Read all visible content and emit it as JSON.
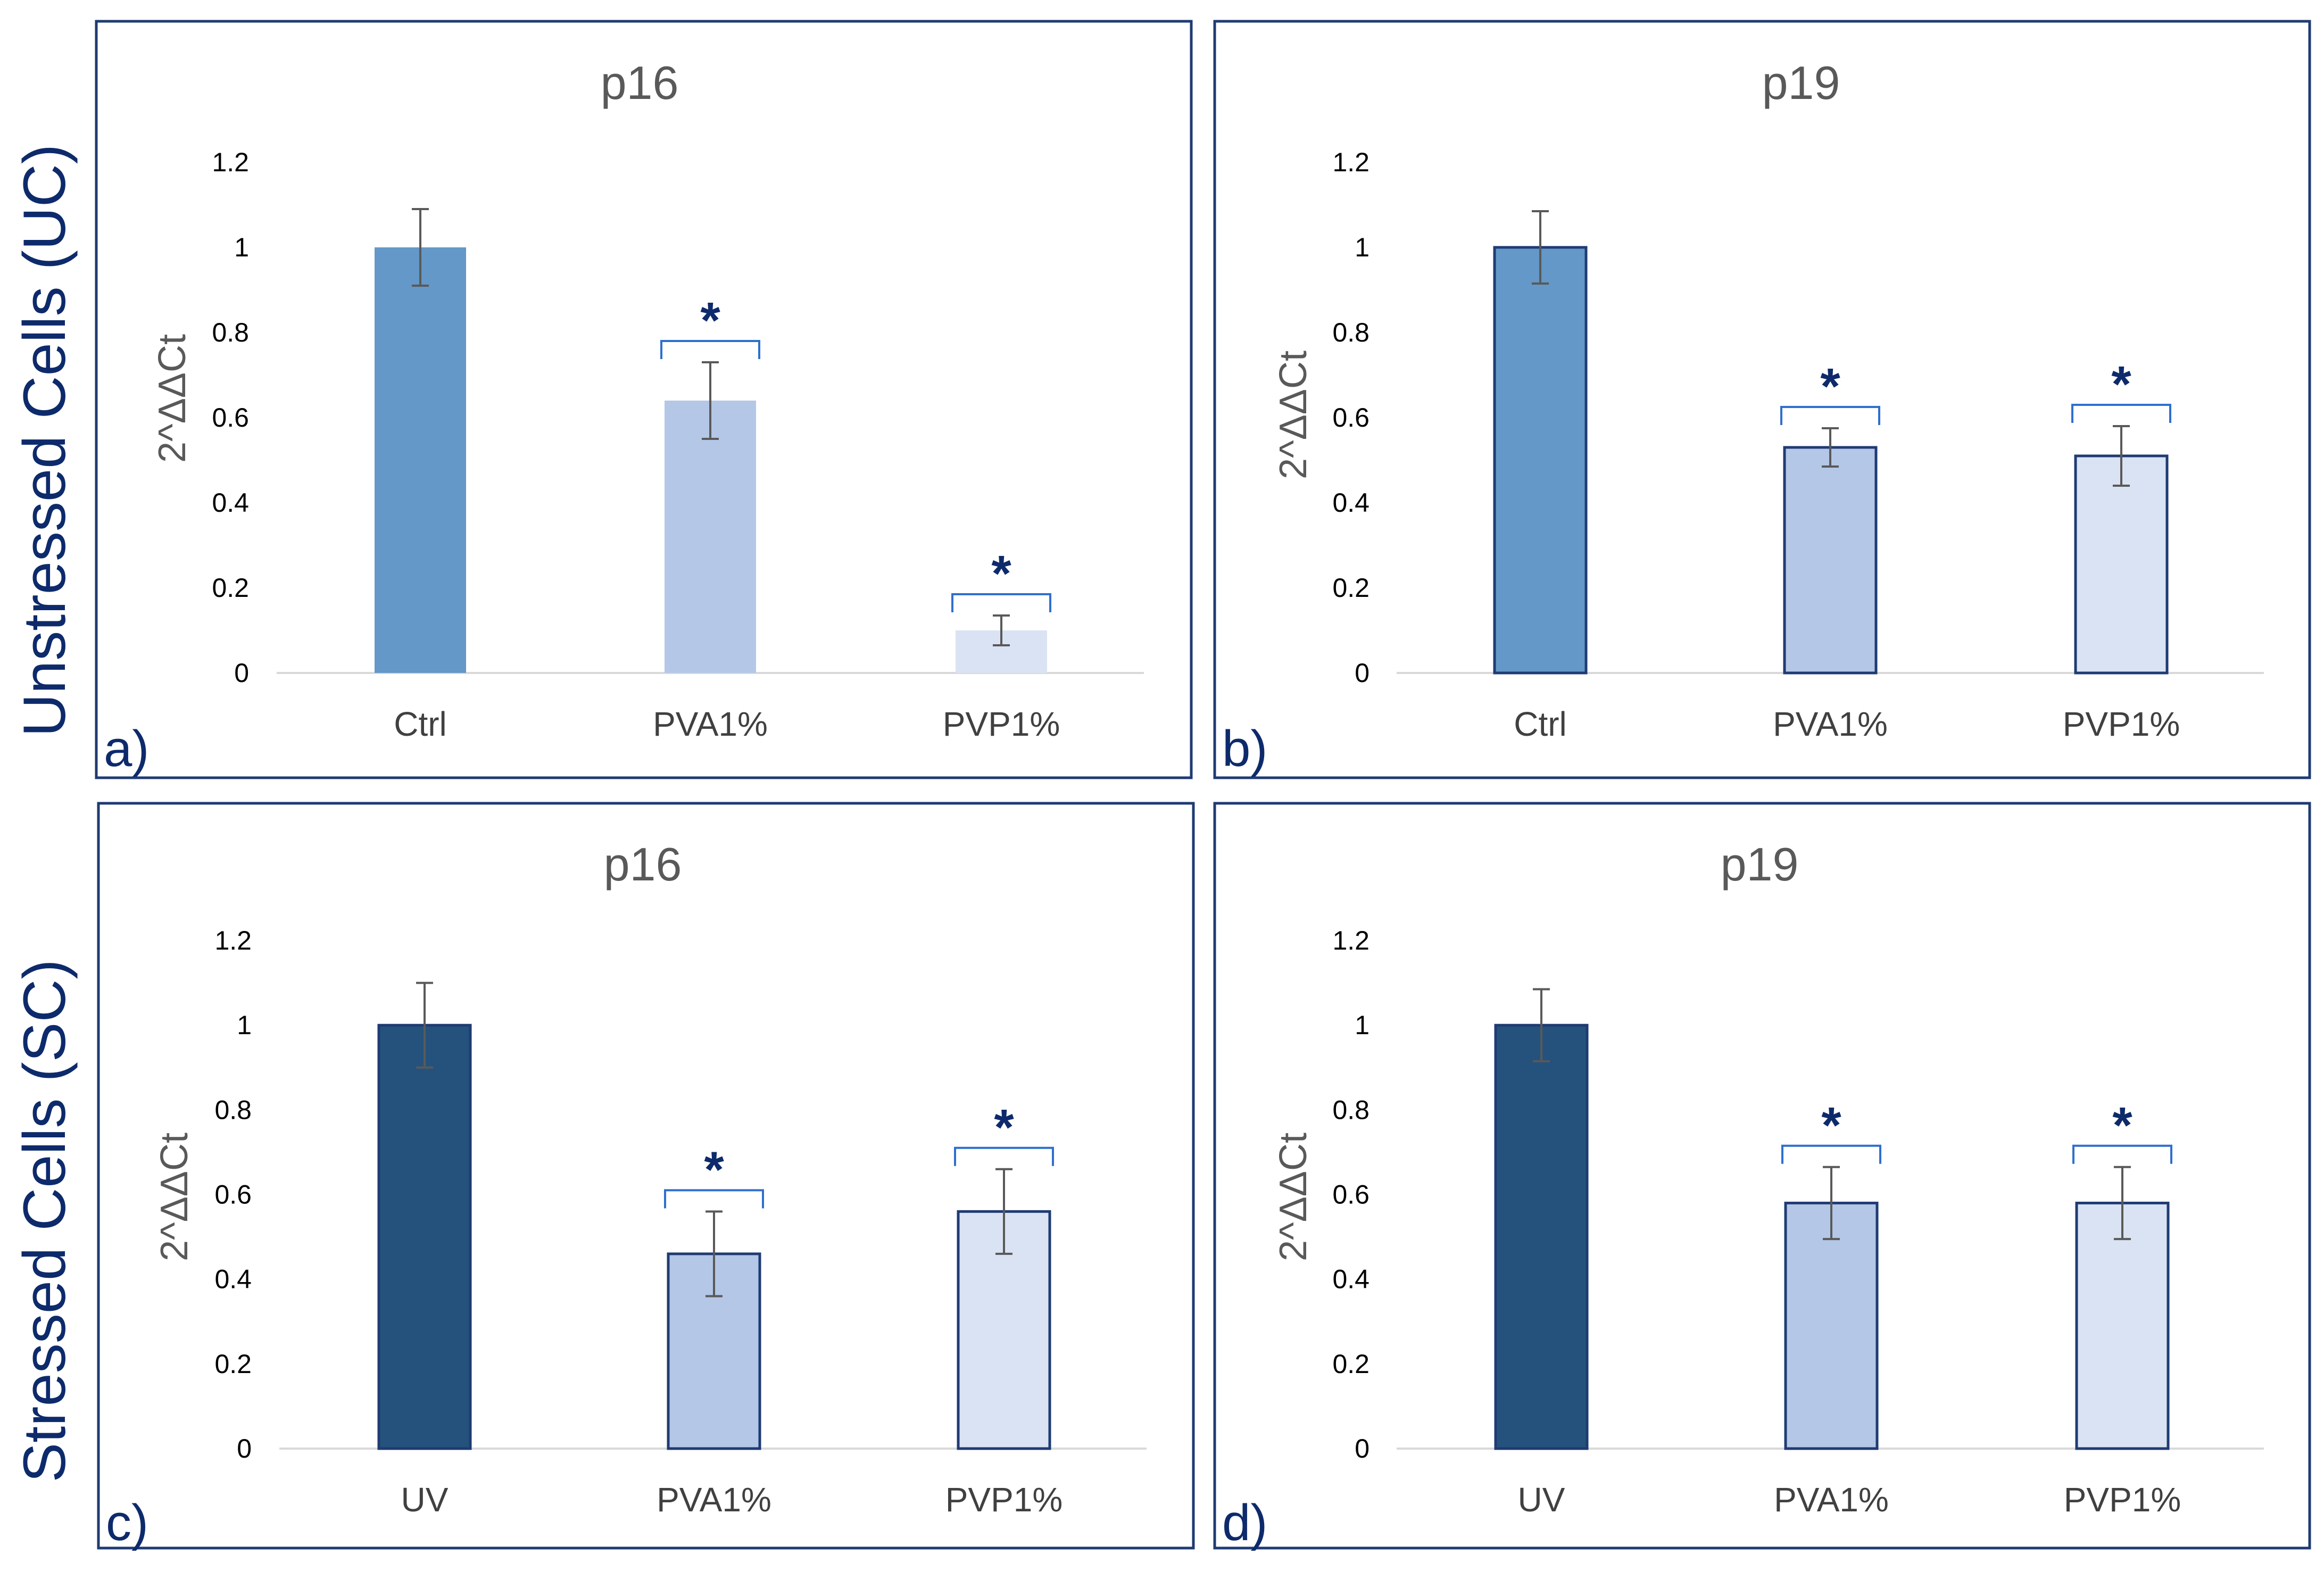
{
  "row_labels": {
    "top": "Unstressed Cells (UC)",
    "bottom": "Stressed Cells (SC)"
  },
  "colors": {
    "frame": "#1f3b73",
    "row_label": "#0d2a6b",
    "title": "#595959",
    "axis_text": "#000000",
    "category_text": "#404040",
    "error_bar": "#595959",
    "significance": "#0d2a6b",
    "bracket": "#2f6fce",
    "baseline": "#d9d9d9"
  },
  "chart_data": [
    {
      "panel_label": "a)",
      "type": "bar",
      "title": "p16",
      "ylabel": "2^ΔΔCt",
      "xlabel": "",
      "ylim": [
        0,
        1.2
      ],
      "yticks": [
        "0",
        "0.2",
        "0.4",
        "0.6",
        "0.8",
        "1",
        "1.2"
      ],
      "categories": [
        "Ctrl",
        "PVA1%",
        "PVP1%"
      ],
      "values": [
        1.0,
        0.64,
        0.1
      ],
      "errors": [
        0.09,
        0.09,
        0.035
      ],
      "significance": [
        "",
        "*",
        "*"
      ],
      "bar_colors": [
        "#6398c8",
        "#b4c7e7",
        "#dae3f3"
      ],
      "bar_outline": "none"
    },
    {
      "panel_label": "b)",
      "type": "bar",
      "title": "p19",
      "ylabel": "2^ΔΔCt",
      "xlabel": "",
      "ylim": [
        0,
        1.2
      ],
      "yticks": [
        "0",
        "0.2",
        "0.4",
        "0.6",
        "0.8",
        "1",
        "1.2"
      ],
      "categories": [
        "Ctrl",
        "PVA1%",
        "PVP1%"
      ],
      "values": [
        1.0,
        0.53,
        0.51
      ],
      "errors": [
        0.085,
        0.045,
        0.07
      ],
      "significance": [
        "",
        "*",
        "*"
      ],
      "bar_colors": [
        "#6398c8",
        "#b4c7e7",
        "#dae3f3"
      ],
      "bar_outline": "#1f3b73"
    },
    {
      "panel_label": "c)",
      "type": "bar",
      "title": "p16",
      "ylabel": "2^ΔΔCt",
      "xlabel": "",
      "ylim": [
        0,
        1.2
      ],
      "yticks": [
        "0",
        "0.2",
        "0.4",
        "0.6",
        "0.8",
        "1",
        "1.2"
      ],
      "categories": [
        "UV",
        "PVA1%",
        "PVP1%"
      ],
      "values": [
        1.0,
        0.46,
        0.56
      ],
      "errors": [
        0.1,
        0.1,
        0.1
      ],
      "significance": [
        "",
        "*",
        "*"
      ],
      "bar_colors": [
        "#24527c",
        "#b4c7e7",
        "#dae3f3"
      ],
      "bar_outline": "#1f3b73"
    },
    {
      "panel_label": "d)",
      "type": "bar",
      "title": "p19",
      "ylabel": "2^ΔΔCt",
      "xlabel": "",
      "ylim": [
        0,
        1.2
      ],
      "yticks": [
        "0",
        "0.2",
        "0.4",
        "0.6",
        "0.8",
        "1",
        "1.2"
      ],
      "categories": [
        "UV",
        "PVA1%",
        "PVP1%"
      ],
      "values": [
        1.0,
        0.58,
        0.58
      ],
      "errors": [
        0.085,
        0.085,
        0.085
      ],
      "significance": [
        "",
        "*",
        "*"
      ],
      "bar_colors": [
        "#24527c",
        "#b4c7e7",
        "#dae3f3"
      ],
      "bar_outline": "#1f3b73"
    }
  ]
}
